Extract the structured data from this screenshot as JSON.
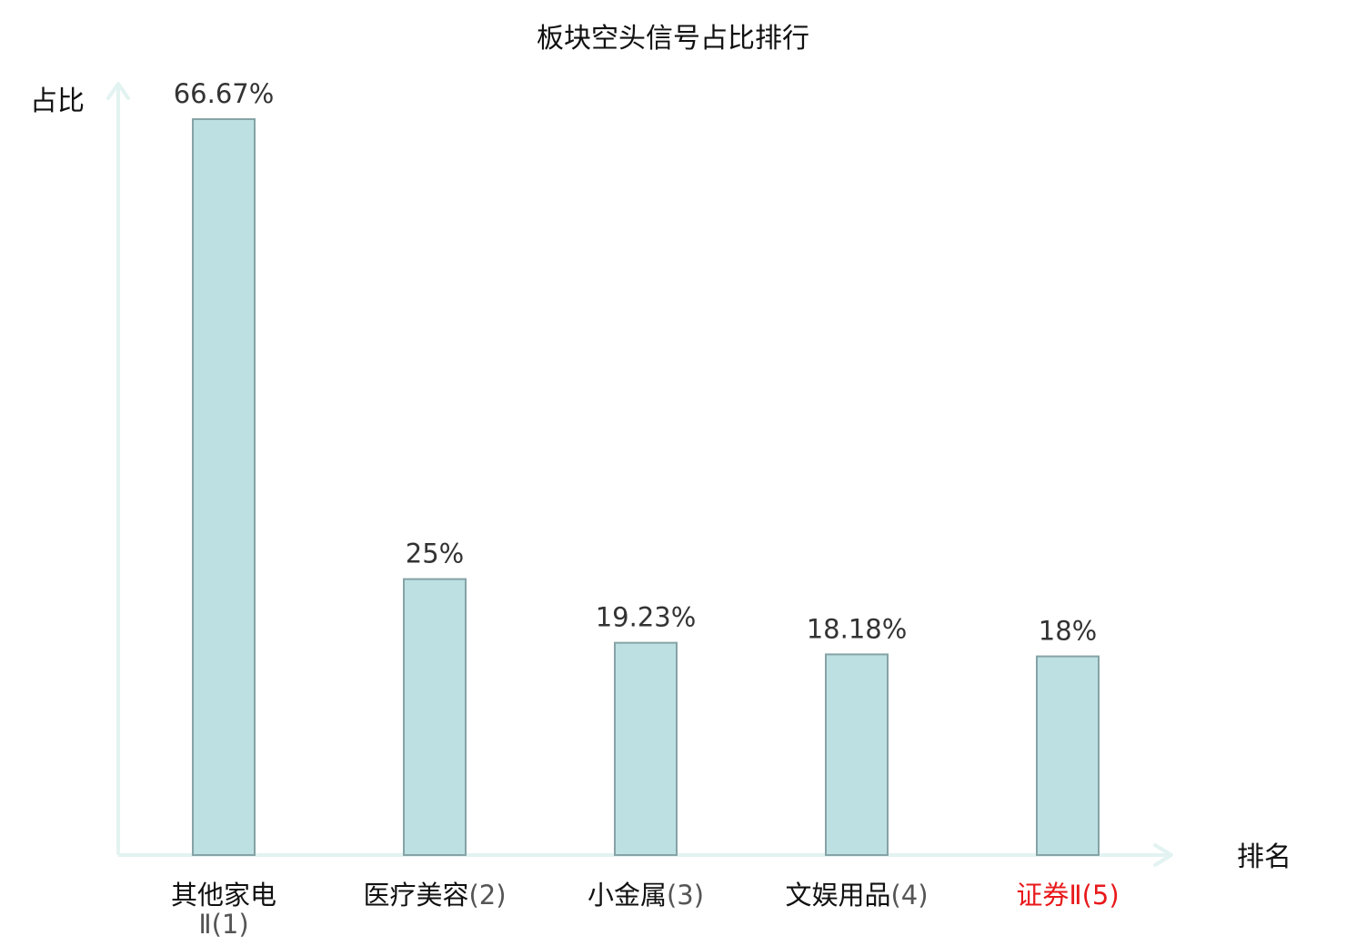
{
  "chart_data": {
    "type": "bar",
    "title": "板块空头信号占比排行",
    "xlabel": "排名",
    "ylabel": "占比",
    "categories": [
      "其他家电Ⅱ",
      "医疗美容",
      "小金属",
      "文娱用品",
      "证券Ⅱ"
    ],
    "ranks": [
      "(1)",
      "(2)",
      "(3)",
      "(4)",
      "(5)"
    ],
    "values": [
      66.67,
      25,
      19.23,
      18.18,
      18
    ],
    "value_labels": [
      "66.67%",
      "25%",
      "19.23%",
      "18.18%",
      "18%"
    ],
    "highlight_index": 4,
    "ylim": [
      0,
      66.67
    ],
    "grid": false,
    "legend": "none",
    "colors": {
      "bar_fill": "#bde0e2",
      "bar_stroke": "#86a3a6",
      "axis": "#e2f3f1",
      "highlight_text": "#e8191b"
    }
  }
}
